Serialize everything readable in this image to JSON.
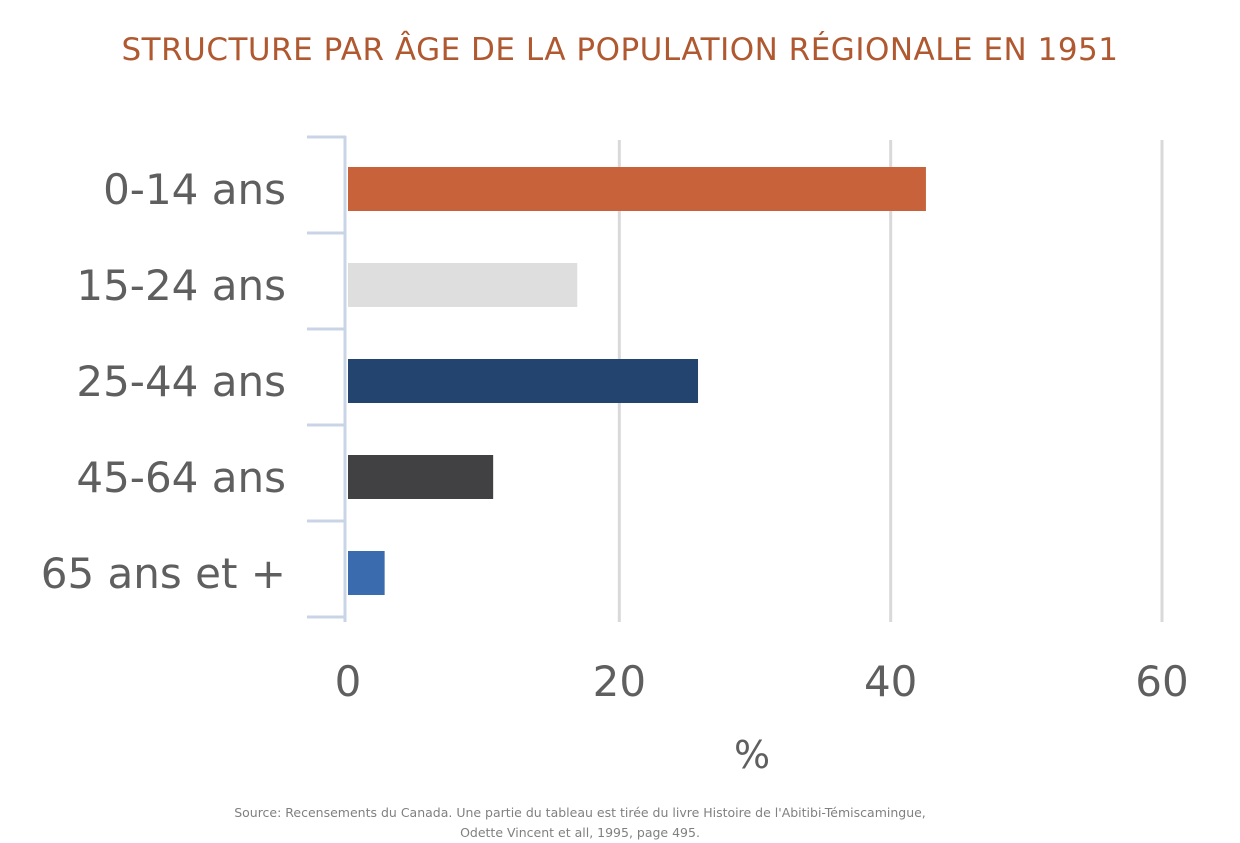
{
  "chart_data": {
    "type": "bar",
    "orientation": "horizontal",
    "title": "STRUCTURE PAR ÂGE DE LA POPULATION RÉGIONALE EN 1951",
    "title_color": "#B0582F",
    "categories": [
      "0-14 ans",
      "15-24 ans",
      "25-44 ans",
      "45-64 ans",
      "65 ans et +"
    ],
    "values": [
      42.6,
      16.9,
      25.8,
      10.7,
      2.7
    ],
    "colors": [
      "#C8623A",
      "#DEDEDE",
      "#23446E",
      "#414143",
      "#3A6BAE"
    ],
    "xlim": [
      0,
      60
    ],
    "xticks": [
      "0",
      "20",
      "40",
      "60"
    ],
    "xlabel": "%",
    "ylabel": "",
    "grid": true,
    "legend": "none",
    "source": [
      "Source: Recensements du Canada. Une partie du tableau est tirée du livre Histoire de l'Abitibi-Témiscamingue,",
      "Odette Vincent et all, 1995, page 495."
    ]
  }
}
